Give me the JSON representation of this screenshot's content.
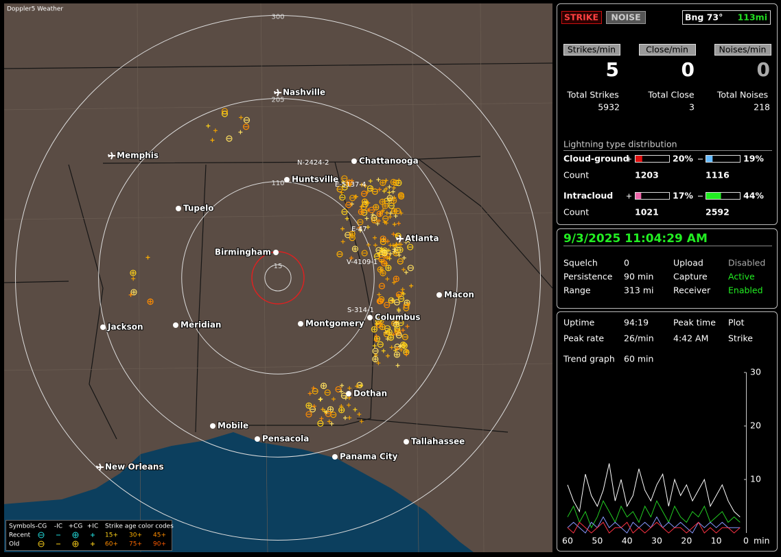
{
  "map": {
    "title": "Doppler5 Weather",
    "range_rings": [
      300,
      205,
      110,
      15
    ],
    "cities": [
      "Nashville",
      "Memphis",
      "Chattanooga",
      "Huntsville",
      "Tupelo",
      "Birmingham",
      "Atlanta",
      "Macon",
      "Columbus",
      "Montgomery",
      "Meridian",
      "Jackson",
      "Dothan",
      "Tallahassee",
      "Mobile",
      "Pensacola",
      "Panama City",
      "New Orleans"
    ],
    "cells": [
      "N-2424-2",
      "E-5137-4",
      "E-47",
      "V-4109-1",
      "S-314-1"
    ],
    "legend": {
      "symbols_label": "Symbols",
      "symbol_types": [
        "-CG",
        "-IC",
        "+CG",
        "+IC"
      ],
      "age_label": "Strike age color codes",
      "rows": [
        "Recent",
        "Old"
      ],
      "ages": [
        [
          "15+",
          "30+",
          "45+"
        ],
        [
          "60+",
          "75+",
          "90+"
        ]
      ]
    }
  },
  "strike_panel": {
    "buttons": [
      "STRIKE",
      "NOISE"
    ],
    "bearing": "Bng 73°",
    "distance": "113mi",
    "rates": [
      {
        "label": "Strikes/min",
        "value": 5
      },
      {
        "label": "Close/min",
        "value": 0
      },
      {
        "label": "Noises/min",
        "value": 0
      }
    ],
    "totals": [
      {
        "label": "Total Strikes",
        "value": 5932
      },
      {
        "label": "Total Close",
        "value": 3
      },
      {
        "label": "Total Noises",
        "value": 218
      }
    ],
    "distribution": {
      "title": "Lightning type distribution",
      "count_label": "Count",
      "types": [
        {
          "name": "Cloud-ground",
          "pos": {
            "value": 20,
            "label": "20%"
          },
          "neg": {
            "value": 19,
            "label": "19%"
          },
          "pos_count": 1203,
          "neg_count": 1116
        },
        {
          "name": "Intracloud",
          "pos": {
            "value": 17,
            "label": "17%"
          },
          "neg": {
            "value": 44,
            "label": "44%"
          },
          "pos_count": 1021,
          "neg_count": 2592
        }
      ]
    }
  },
  "status": {
    "datetime": "9/3/2025 11:04:29 AM",
    "rows": [
      [
        "Squelch",
        "0",
        "Upload",
        "Disabled"
      ],
      [
        "Persistence",
        "90 min",
        "Capture",
        "Active"
      ],
      [
        "Range",
        "313 mi",
        "Receiver",
        "Enabled"
      ]
    ]
  },
  "stats": {
    "rows": [
      [
        "Uptime",
        "94:19",
        "Peak time",
        "Plot"
      ],
      [
        "Peak rate",
        "26/min",
        "4:42 AM",
        "Strike"
      ]
    ],
    "trend_label": "Trend graph",
    "trend_span": "60 min"
  },
  "trend": {
    "type": "line",
    "x_unit": "min",
    "x": [
      60,
      58,
      56,
      54,
      52,
      50,
      48,
      46,
      44,
      42,
      40,
      38,
      36,
      34,
      32,
      30,
      28,
      26,
      24,
      22,
      20,
      18,
      16,
      14,
      12,
      10,
      8,
      6,
      4,
      2
    ],
    "xlim": [
      60,
      0
    ],
    "ylim": [
      0,
      30
    ],
    "xticks": [
      60,
      50,
      40,
      30,
      20,
      10,
      0
    ],
    "yticks": [
      10,
      20,
      30
    ],
    "series": [
      {
        "color": "#ffffff",
        "values": [
          9,
          6,
          4,
          11,
          7,
          5,
          8,
          13,
          6,
          10,
          5,
          7,
          12,
          8,
          6,
          9,
          11,
          5,
          10,
          7,
          9,
          6,
          8,
          10,
          5,
          7,
          9,
          6,
          4,
          3
        ]
      },
      {
        "color": "#22cc22",
        "values": [
          3,
          5,
          2,
          4,
          1,
          3,
          6,
          4,
          2,
          5,
          3,
          4,
          2,
          5,
          3,
          6,
          4,
          2,
          5,
          3,
          2,
          4,
          3,
          5,
          2,
          3,
          4,
          2,
          3,
          2
        ]
      },
      {
        "color": "#8899ff",
        "values": [
          1,
          2,
          1,
          0,
          2,
          1,
          3,
          1,
          2,
          1,
          0,
          2,
          1,
          2,
          1,
          3,
          1,
          2,
          1,
          2,
          1,
          0,
          2,
          1,
          2,
          1,
          2,
          1,
          1,
          1
        ]
      },
      {
        "color": "#ff3344",
        "values": [
          1,
          0,
          2,
          1,
          0,
          1,
          2,
          0,
          1,
          1,
          2,
          0,
          1,
          0,
          1,
          2,
          1,
          0,
          1,
          1,
          0,
          1,
          2,
          0,
          1,
          0,
          1,
          1,
          0,
          1
        ]
      }
    ]
  }
}
